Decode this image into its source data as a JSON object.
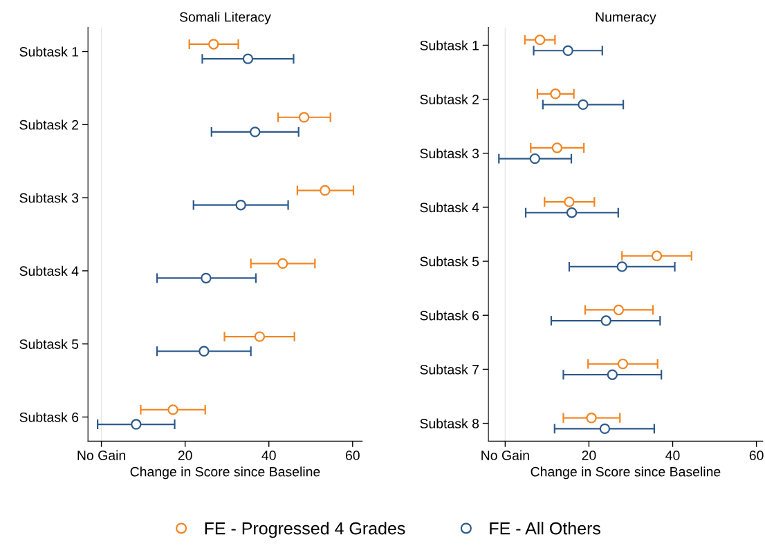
{
  "chart_data": [
    {
      "type": "scatter",
      "orientation": "horizontal",
      "title": "Somali Literacy",
      "xlabel": "Change in Score since Baseline",
      "categories": [
        "Subtask 1",
        "Subtask 2",
        "Subtask 3",
        "Subtask 4",
        "Subtask 5",
        "Subtask 6"
      ],
      "xlim": [
        -3.2,
        62.3
      ],
      "xticks": [
        {
          "value": 0,
          "label": "No Gain"
        },
        20,
        40,
        60
      ],
      "marker": "circle",
      "grid": false,
      "legend": "bottom",
      "ref_lines": [
        {
          "axis": "x",
          "value": 0,
          "color": "#e6e6e6"
        }
      ],
      "series": [
        {
          "name": "FE - Progressed 4 Grades",
          "color": "#f28522",
          "values": [
            26.8,
            48.4,
            53.4,
            43.3,
            37.8,
            17.1
          ],
          "errors": [
            [
              21.0,
              32.7
            ],
            [
              42.2,
              54.7
            ],
            [
              46.8,
              60.2
            ],
            [
              35.7,
              51.0
            ],
            [
              29.4,
              46.1
            ],
            [
              9.4,
              24.8
            ]
          ]
        },
        {
          "name": "FE - All Others",
          "color": "#2d5a8c",
          "values": [
            35.0,
            36.7,
            33.3,
            25.0,
            24.5,
            8.3
          ],
          "errors": [
            [
              24.1,
              45.9
            ],
            [
              26.3,
              47.1
            ],
            [
              22.0,
              44.6
            ],
            [
              13.3,
              36.9
            ],
            [
              13.3,
              35.7
            ],
            [
              -0.9,
              17.5
            ]
          ]
        }
      ]
    },
    {
      "type": "scatter",
      "orientation": "horizontal",
      "title": "Numeracy",
      "xlabel": "Change in Score since Baseline",
      "categories": [
        "Subtask 1",
        "Subtask 2",
        "Subtask 3",
        "Subtask 4",
        "Subtask 5",
        "Subtask 6",
        "Subtask 7",
        "Subtask 8"
      ],
      "xlim": [
        -4.0,
        61.5
      ],
      "xticks": [
        {
          "value": 0,
          "label": "No Gain"
        },
        20,
        40,
        60
      ],
      "marker": "circle",
      "grid": false,
      "legend": false,
      "ref_lines": [
        {
          "axis": "x",
          "value": 0,
          "color": "#e6e6e6"
        }
      ],
      "series": [
        {
          "color": "#f28522",
          "values": [
            8.3,
            12.0,
            12.4,
            15.3,
            36.2,
            27.1,
            28.1,
            20.6
          ],
          "errors": [
            [
              4.7,
              11.9
            ],
            [
              7.7,
              16.4
            ],
            [
              6.1,
              18.8
            ],
            [
              9.4,
              21.3
            ],
            [
              27.9,
              44.5
            ],
            [
              19.1,
              35.3
            ],
            [
              19.8,
              36.4
            ],
            [
              13.9,
              27.4
            ]
          ]
        },
        {
          "color": "#2d5a8c",
          "values": [
            15.0,
            18.6,
            7.1,
            15.9,
            27.9,
            24.1,
            25.6,
            23.8
          ],
          "errors": [
            [
              6.8,
              23.2
            ],
            [
              9.0,
              28.2
            ],
            [
              -1.5,
              15.8
            ],
            [
              4.9,
              27.0
            ],
            [
              15.3,
              40.5
            ],
            [
              11.0,
              37.0
            ],
            [
              13.9,
              37.3
            ],
            [
              11.8,
              35.6
            ]
          ]
        }
      ]
    }
  ]
}
